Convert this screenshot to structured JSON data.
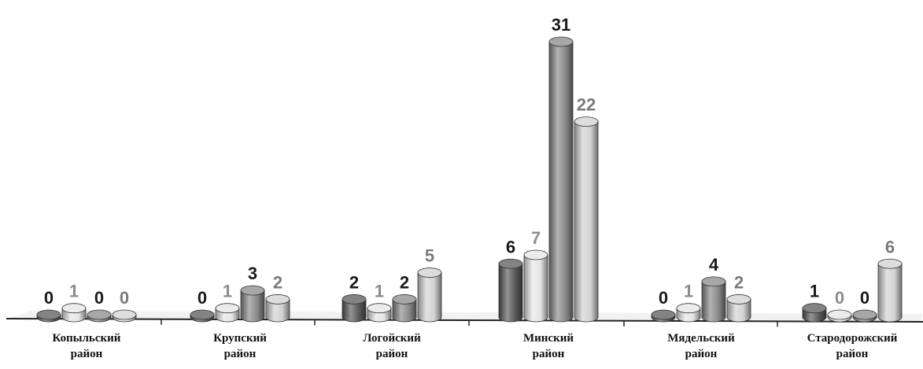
{
  "chart_data": {
    "type": "bar",
    "title": "",
    "xlabel": "",
    "ylabel": "",
    "ylim": [
      0,
      31
    ],
    "grid": false,
    "legend": "none",
    "categories": [
      [
        "Копыльский",
        "район"
      ],
      [
        "Крупский",
        "район"
      ],
      [
        "Логойский",
        "район"
      ],
      [
        "Минский",
        "район"
      ],
      [
        "Мядельский",
        "район"
      ],
      [
        "Стародорожский",
        "район"
      ]
    ],
    "series": [
      {
        "values": [
          0,
          0,
          2,
          6,
          0,
          1
        ],
        "color": "#5a5a5a",
        "label_color": "#1a1a1a"
      },
      {
        "values": [
          1,
          1,
          1,
          7,
          1,
          0
        ],
        "color": "#e6e6e6",
        "label_color": "#8c8c8c"
      },
      {
        "values": [
          0,
          3,
          2,
          31,
          4,
          0
        ],
        "color": "#8a8a8a",
        "label_color": "#1a1a1a"
      },
      {
        "values": [
          0,
          2,
          5,
          22,
          2,
          6
        ],
        "color": "#d2d2d2",
        "label_color": "#7a7a7a"
      }
    ]
  }
}
